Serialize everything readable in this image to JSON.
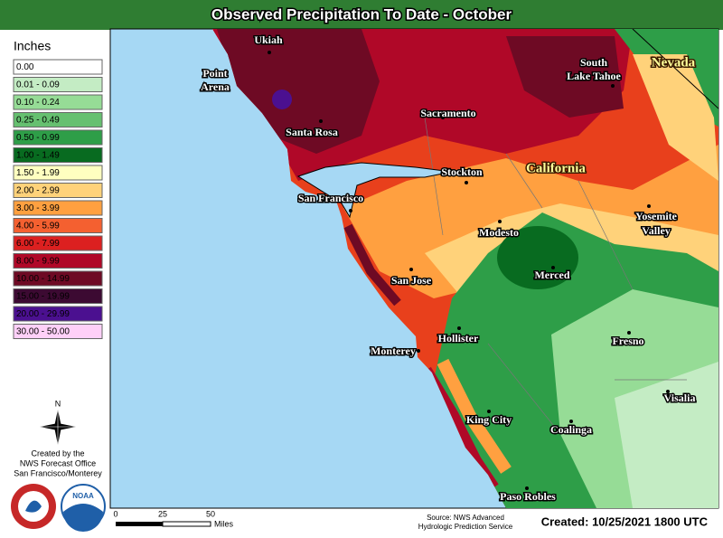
{
  "header": {
    "title": "Observed Precipitation To Date - October"
  },
  "legend": {
    "title": "Inches",
    "items": [
      {
        "label": "0.00",
        "color": "#ffffff"
      },
      {
        "label": "0.01 - 0.09",
        "color": "#c4ecc4"
      },
      {
        "label": "0.10 - 0.24",
        "color": "#96dc96"
      },
      {
        "label": "0.25 - 0.49",
        "color": "#66c070"
      },
      {
        "label": "0.50 - 0.99",
        "color": "#2e9e48"
      },
      {
        "label": "1.00 - 1.49",
        "color": "#086b20"
      },
      {
        "label": "1.50 - 1.99",
        "color": "#ffffc0"
      },
      {
        "label": "2.00 - 2.99",
        "color": "#ffd27a"
      },
      {
        "label": "3.00 - 3.99",
        "color": "#ffa040"
      },
      {
        "label": "4.00 - 5.99",
        "color": "#f46030"
      },
      {
        "label": "6.00 - 7.99",
        "color": "#dc2020"
      },
      {
        "label": "8.00 - 9.99",
        "color": "#b00828"
      },
      {
        "label": "10.00 - 14.99",
        "color": "#6e0a24"
      },
      {
        "label": "15.00 - 19.99",
        "color": "#3c0a32"
      },
      {
        "label": "20.00 - 29.99",
        "color": "#4b1090"
      },
      {
        "label": "30.00 - 50.00",
        "color": "#ffd0f8"
      }
    ]
  },
  "places": {
    "states": [
      "Nevada",
      "California"
    ],
    "cities": [
      "Ukiah",
      [
        "Point",
        "Arena"
      ],
      "Santa Rosa",
      "Sacramento",
      [
        "South",
        "Lake Tahoe"
      ],
      "Stockton",
      "San Francisco",
      "Modesto",
      [
        "Yosemite",
        "Valley"
      ],
      "San Jose",
      "Merced",
      "Hollister",
      "Fresno",
      "Monterey",
      "King City",
      "Visalia",
      "Coalinga",
      "Paso Robles"
    ]
  },
  "credits": {
    "north": "N",
    "lines": [
      "Created by the",
      "NWS Forecast Office",
      "San Francisco/Monterey"
    ],
    "noaa": "NOAA"
  },
  "scale": {
    "labels": [
      "0",
      "25",
      "50"
    ],
    "unit": "Miles"
  },
  "footer": {
    "source": [
      "Source: NWS Advanced",
      "Hydrologic Prediction Service"
    ],
    "created": "Created: 10/25/2021 1800 UTC"
  }
}
